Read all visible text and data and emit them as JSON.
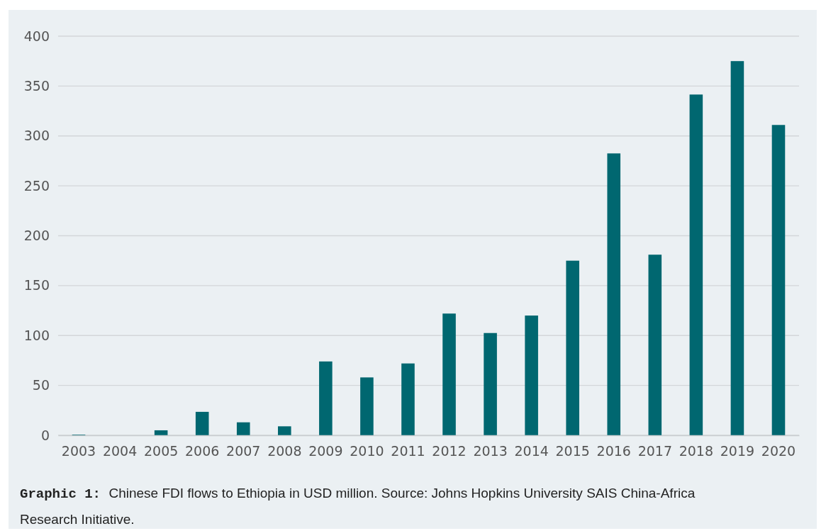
{
  "chart_data": {
    "type": "bar",
    "categories": [
      "2003",
      "2004",
      "2005",
      "2006",
      "2007",
      "2008",
      "2009",
      "2010",
      "2011",
      "2012",
      "2013",
      "2014",
      "2015",
      "2016",
      "2017",
      "2018",
      "2019",
      "2020"
    ],
    "values": [
      0.7,
      0,
      5,
      23.5,
      13,
      9,
      74,
      58,
      72,
      122,
      102.5,
      120,
      175,
      282.5,
      181,
      341.5,
      375,
      311
    ],
    "color": "#006770",
    "ylim": [
      0,
      400
    ],
    "yticks": [
      0,
      50,
      100,
      150,
      200,
      250,
      300,
      350,
      400
    ],
    "grid": "y",
    "annotations": [
      "Graphic 1:",
      "Chinese FDI flows to Ethiopia in USD million. Source: Johns Hopkins University SAIS China-Africa Research Initiative."
    ]
  }
}
